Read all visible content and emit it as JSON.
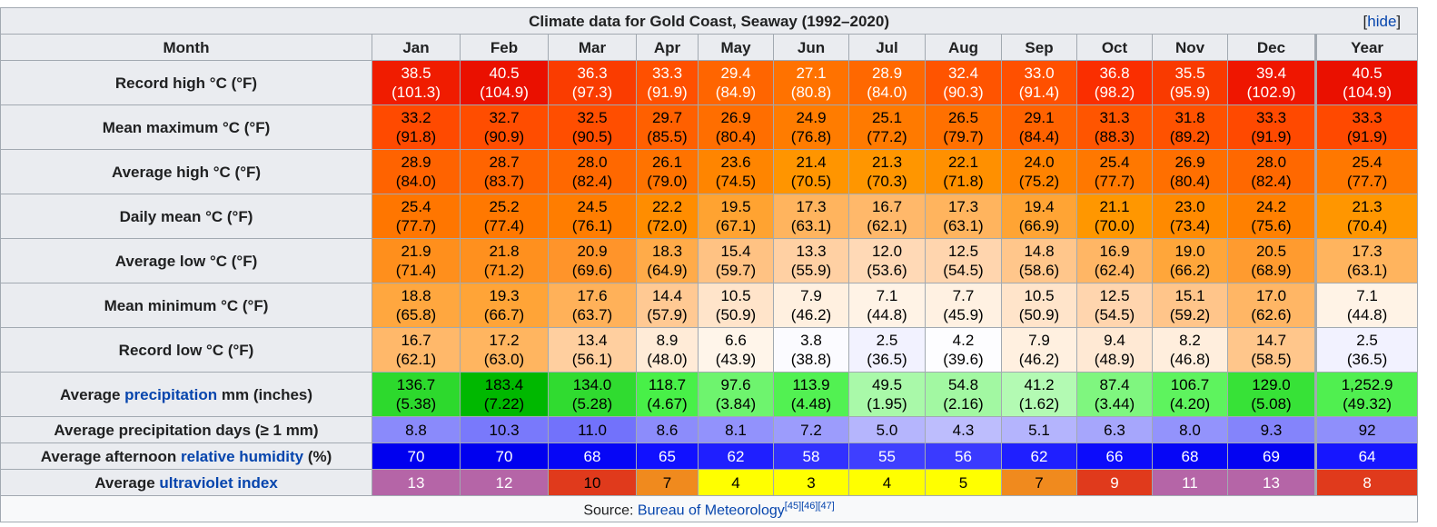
{
  "title": "Climate data for Gold Coast, Seaway (1992–2020)",
  "hide_label": "hide",
  "month_header": "Month",
  "columns": [
    "Jan",
    "Feb",
    "Mar",
    "Apr",
    "May",
    "Jun",
    "Jul",
    "Aug",
    "Sep",
    "Oct",
    "Nov",
    "Dec",
    "Year"
  ],
  "rows": {
    "record_high": {
      "label": "Record high °C (°F)",
      "top": [
        "38.5",
        "40.5",
        "36.3",
        "33.3",
        "29.4",
        "27.1",
        "28.9",
        "32.4",
        "33.0",
        "36.8",
        "35.5",
        "39.4",
        "40.5"
      ],
      "bottom": [
        "(101.3)",
        "(104.9)",
        "(97.3)",
        "(91.9)",
        "(84.9)",
        "(80.8)",
        "(84.0)",
        "(90.3)",
        "(91.4)",
        "(98.2)",
        "(95.9)",
        "(102.9)",
        "(104.9)"
      ],
      "bg": [
        "#f01c00",
        "#ea1000",
        "#fa3c00",
        "#ff5000",
        "#ff6500",
        "#ff7200",
        "#ff6800",
        "#ff5400",
        "#ff5000",
        "#fa2e00",
        "#f93a00",
        "#ef1600",
        "#ea1000"
      ],
      "fg": [
        "#ffffff",
        "#ffffff",
        "#ffffff",
        "#ffffff",
        "#ffffff",
        "#ffffff",
        "#ffffff",
        "#ffffff",
        "#ffffff",
        "#ffffff",
        "#ffffff",
        "#ffffff",
        "#ffffff"
      ]
    },
    "mean_max": {
      "label": "Mean maximum °C (°F)",
      "top": [
        "33.2",
        "32.7",
        "32.5",
        "29.7",
        "26.9",
        "24.9",
        "25.1",
        "26.5",
        "29.1",
        "31.3",
        "31.8",
        "33.3",
        "33.3"
      ],
      "bottom": [
        "(91.8)",
        "(90.9)",
        "(90.5)",
        "(85.5)",
        "(80.4)",
        "(76.8)",
        "(77.2)",
        "(79.7)",
        "(84.4)",
        "(88.3)",
        "(89.2)",
        "(91.9)",
        "(91.9)"
      ],
      "bg": [
        "#ff4a00",
        "#ff4d00",
        "#ff4e00",
        "#ff6000",
        "#ff6e00",
        "#ff7c00",
        "#ff7a00",
        "#ff7000",
        "#ff6200",
        "#ff5500",
        "#ff5200",
        "#ff4900",
        "#ff4900"
      ],
      "fg": [
        "#000000",
        "#000000",
        "#000000",
        "#000000",
        "#000000",
        "#000000",
        "#000000",
        "#000000",
        "#000000",
        "#000000",
        "#000000",
        "#000000",
        "#000000"
      ]
    },
    "avg_high": {
      "label": "Average high °C (°F)",
      "top": [
        "28.9",
        "28.7",
        "28.0",
        "26.1",
        "23.6",
        "21.4",
        "21.3",
        "22.1",
        "24.0",
        "25.4",
        "26.9",
        "28.0",
        "25.4"
      ],
      "bottom": [
        "(84.0)",
        "(83.7)",
        "(82.4)",
        "(79.0)",
        "(74.5)",
        "(70.5)",
        "(70.3)",
        "(71.8)",
        "(75.2)",
        "(77.7)",
        "(80.4)",
        "(82.4)",
        "(77.7)"
      ],
      "bg": [
        "#ff6300",
        "#ff6400",
        "#ff6800",
        "#ff7300",
        "#ff8500",
        "#ff9500",
        "#ff9600",
        "#ff9000",
        "#ff8300",
        "#ff7800",
        "#ff6f00",
        "#ff6800",
        "#ff7800"
      ],
      "fg": [
        "#000000",
        "#000000",
        "#000000",
        "#000000",
        "#000000",
        "#000000",
        "#000000",
        "#000000",
        "#000000",
        "#000000",
        "#000000",
        "#000000",
        "#000000"
      ]
    },
    "daily_mean": {
      "label": "Daily mean °C (°F)",
      "top": [
        "25.4",
        "25.2",
        "24.5",
        "22.2",
        "19.5",
        "17.3",
        "16.7",
        "17.3",
        "19.4",
        "21.1",
        "23.0",
        "24.2",
        "21.3"
      ],
      "bottom": [
        "(77.7)",
        "(77.4)",
        "(76.1)",
        "(72.0)",
        "(67.1)",
        "(63.1)",
        "(62.1)",
        "(63.1)",
        "(66.9)",
        "(70.0)",
        "(73.4)",
        "(75.6)",
        "(70.4)"
      ],
      "bg": [
        "#ff7600",
        "#ff7800",
        "#ff7d00",
        "#ff8d00",
        "#ffa331",
        "#ffb45e",
        "#ffb86a",
        "#ffb45e",
        "#ffa434",
        "#ff9700",
        "#ff8a00",
        "#ff8000",
        "#ff9600"
      ],
      "fg": [
        "#000000",
        "#000000",
        "#000000",
        "#000000",
        "#000000",
        "#000000",
        "#000000",
        "#000000",
        "#000000",
        "#000000",
        "#000000",
        "#000000",
        "#000000"
      ]
    },
    "avg_low": {
      "label": "Average low °C (°F)",
      "top": [
        "21.9",
        "21.8",
        "20.9",
        "18.3",
        "15.4",
        "13.3",
        "12.0",
        "12.5",
        "14.8",
        "16.9",
        "19.0",
        "20.5",
        "17.3"
      ],
      "bottom": [
        "(71.4)",
        "(71.2)",
        "(69.6)",
        "(64.9)",
        "(59.7)",
        "(55.9)",
        "(53.6)",
        "(54.5)",
        "(58.6)",
        "(62.4)",
        "(66.2)",
        "(68.9)",
        "(63.1)"
      ],
      "bg": [
        "#ff8f1c",
        "#ff901e",
        "#ff942a",
        "#ffab49",
        "#ffc283",
        "#ffd0a3",
        "#ffd9b6",
        "#ffd5ae",
        "#ffc68b",
        "#ffb665",
        "#ffa63a",
        "#ff9b2f",
        "#ffb45e"
      ],
      "fg": [
        "#000000",
        "#000000",
        "#000000",
        "#000000",
        "#000000",
        "#000000",
        "#000000",
        "#000000",
        "#000000",
        "#000000",
        "#000000",
        "#000000",
        "#000000"
      ]
    },
    "mean_min": {
      "label": "Mean minimum °C (°F)",
      "top": [
        "18.8",
        "19.3",
        "17.6",
        "14.4",
        "10.5",
        "7.9",
        "7.1",
        "7.7",
        "10.5",
        "12.5",
        "15.1",
        "17.0",
        "7.1"
      ],
      "bottom": [
        "(65.8)",
        "(66.7)",
        "(63.7)",
        "(57.9)",
        "(50.9)",
        "(46.2)",
        "(44.8)",
        "(45.9)",
        "(50.9)",
        "(54.5)",
        "(59.2)",
        "(62.6)",
        "(44.8)"
      ],
      "bg": [
        "#ffa73f",
        "#ffa437",
        "#ffb159",
        "#ffc993",
        "#ffe4ca",
        "#fff0e0",
        "#fff3e6",
        "#fff1e2",
        "#ffe4ca",
        "#ffd5ae",
        "#ffc58a",
        "#ffb665",
        "#fff3e6"
      ],
      "fg": [
        "#000000",
        "#000000",
        "#000000",
        "#000000",
        "#000000",
        "#000000",
        "#000000",
        "#000000",
        "#000000",
        "#000000",
        "#000000",
        "#000000",
        "#000000"
      ]
    },
    "record_low": {
      "label": "Record low °C (°F)",
      "top": [
        "16.7",
        "17.2",
        "13.4",
        "8.9",
        "6.6",
        "3.8",
        "2.5",
        "4.2",
        "7.9",
        "9.4",
        "8.2",
        "14.7",
        "2.5"
      ],
      "bottom": [
        "(62.1)",
        "(63.0)",
        "(56.1)",
        "(48.0)",
        "(43.9)",
        "(38.8)",
        "(36.5)",
        "(39.6)",
        "(46.2)",
        "(48.9)",
        "(46.8)",
        "(58.5)",
        "(36.5)"
      ],
      "bg": [
        "#ffb86a",
        "#ffb560",
        "#ffcf9f",
        "#ffebd7",
        "#fff5ea",
        "#fbfbff",
        "#f2f2ff",
        "#fdfdff",
        "#fff0e0",
        "#ffe9d4",
        "#ffeedd",
        "#ffc68b",
        "#f2f2ff"
      ],
      "fg": [
        "#000000",
        "#000000",
        "#000000",
        "#000000",
        "#000000",
        "#000000",
        "#000000",
        "#000000",
        "#000000",
        "#000000",
        "#000000",
        "#000000",
        "#000000"
      ]
    },
    "precip": {
      "label_prefix": "Average ",
      "label_link": "precipitation",
      "label_suffix": " mm (inches)",
      "top": [
        "136.7",
        "183.4",
        "134.0",
        "118.7",
        "97.6",
        "113.9",
        "49.5",
        "54.8",
        "41.2",
        "87.4",
        "106.7",
        "129.0",
        "1,252.9"
      ],
      "bottom": [
        "(5.38)",
        "(7.22)",
        "(5.28)",
        "(4.67)",
        "(3.84)",
        "(4.48)",
        "(1.95)",
        "(2.16)",
        "(1.62)",
        "(3.44)",
        "(4.20)",
        "(5.08)",
        "(49.32)"
      ],
      "bg": [
        "#2dd92d",
        "#00b800",
        "#30db30",
        "#48f048",
        "#6ef46e",
        "#52f152",
        "#a9f9a9",
        "#a2f8a2",
        "#b3fab3",
        "#7ff67f",
        "#5ef35e",
        "#37e237",
        "#50ef50"
      ],
      "fg": [
        "#000000",
        "#000000",
        "#000000",
        "#000000",
        "#000000",
        "#000000",
        "#000000",
        "#000000",
        "#000000",
        "#000000",
        "#000000",
        "#000000",
        "#000000"
      ]
    },
    "precip_days": {
      "label": "Average precipitation days (≥ 1 mm)",
      "values": [
        "8.8",
        "10.3",
        "11.0",
        "8.6",
        "8.1",
        "7.2",
        "5.0",
        "4.3",
        "5.1",
        "6.3",
        "8.0",
        "9.3",
        "92"
      ],
      "bg": [
        "#8a8afb",
        "#7979fb",
        "#7272fb",
        "#8c8cfb",
        "#9292fc",
        "#9c9cfc",
        "#b5b5fd",
        "#bdbdfd",
        "#b4b4fd",
        "#a6a6fc",
        "#9393fc",
        "#8484fb",
        "#8f8ffb"
      ],
      "fg": [
        "#000000",
        "#000000",
        "#000000",
        "#000000",
        "#000000",
        "#000000",
        "#000000",
        "#000000",
        "#000000",
        "#000000",
        "#000000",
        "#000000",
        "#000000"
      ]
    },
    "humidity": {
      "label_prefix": "Average afternoon ",
      "label_link": "relative humidity",
      "label_suffix": " (%)",
      "values": [
        "70",
        "70",
        "68",
        "65",
        "62",
        "58",
        "55",
        "56",
        "62",
        "66",
        "68",
        "69",
        "64"
      ],
      "bg": [
        "#0000ef",
        "#0000ef",
        "#0606f6",
        "#1111ff",
        "#1f1fff",
        "#3131ff",
        "#3f3fff",
        "#3a3aff",
        "#1f1fff",
        "#0c0cfb",
        "#0606f6",
        "#0303f2",
        "#1616ff"
      ],
      "fg": [
        "#ffffff",
        "#ffffff",
        "#ffffff",
        "#ffffff",
        "#ffffff",
        "#ffffff",
        "#ffffff",
        "#ffffff",
        "#ffffff",
        "#ffffff",
        "#ffffff",
        "#ffffff",
        "#ffffff"
      ]
    },
    "uv": {
      "label_prefix": "Average ",
      "label_link": "ultraviolet index",
      "label_suffix": "",
      "values": [
        "13",
        "12",
        "10",
        "7",
        "4",
        "3",
        "4",
        "5",
        "7",
        "9",
        "11",
        "13",
        "8"
      ],
      "bg": [
        "#b565a7",
        "#b565a7",
        "#e03a1c",
        "#f08a1e",
        "#ffff00",
        "#ffff00",
        "#ffff00",
        "#ffff00",
        "#f08a1e",
        "#e03a1c",
        "#b565a7",
        "#b565a7",
        "#e03a1c"
      ],
      "fg": [
        "#ffffff",
        "#ffffff",
        "#000000",
        "#000000",
        "#000000",
        "#000000",
        "#000000",
        "#000000",
        "#000000",
        "#ffffff",
        "#ffffff",
        "#ffffff",
        "#ffffff"
      ]
    }
  },
  "source": {
    "prefix": "Source: ",
    "link": "Bureau of Meteorology",
    "refs": "[45][46][47]"
  }
}
